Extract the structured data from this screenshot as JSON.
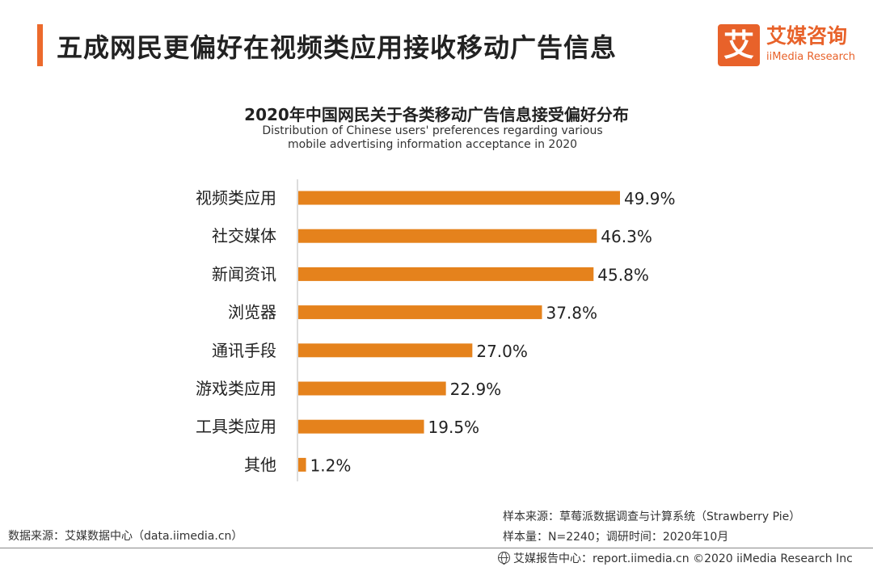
{
  "header": {
    "title": "五成网民更偏好在视频类应用接收移动广告信息"
  },
  "logo": {
    "mark": "艾",
    "name_cn": "艾媒咨询",
    "name_en": "iiMedia Research"
  },
  "chart_data": {
    "type": "bar",
    "orientation": "horizontal",
    "title": "2020年中国网民关于各类移动广告信息接受偏好分布",
    "subtitle": "Distribution of Chinese users' preferences regarding various mobile advertising information acceptance in 2020",
    "categories": [
      "视频类应用",
      "社交媒体",
      "新闻资讯",
      "浏览器",
      "通讯手段",
      "游戏类应用",
      "工具类应用",
      "其他"
    ],
    "values": [
      49.9,
      46.3,
      45.8,
      37.8,
      27.0,
      22.9,
      19.5,
      1.2
    ],
    "value_labels": [
      "49.9%",
      "46.3%",
      "45.8%",
      "37.8%",
      "27.0%",
      "22.9%",
      "19.5%",
      "1.2%"
    ],
    "xlim": [
      0,
      100
    ],
    "grid": false,
    "legend": "none",
    "bar_color": "#e5821c"
  },
  "footer": {
    "source": "数据来源：艾媒数据中心（data.iimedia.cn）",
    "sample_source": "样本来源：草莓派数据调查与计算系统（Strawberry Pie）",
    "sample_info": "样本量：N=2240；调研时间：2020年10月",
    "copyright": "艾媒报告中心：report.iimedia.cn  ©2020  iiMedia Research  Inc"
  }
}
